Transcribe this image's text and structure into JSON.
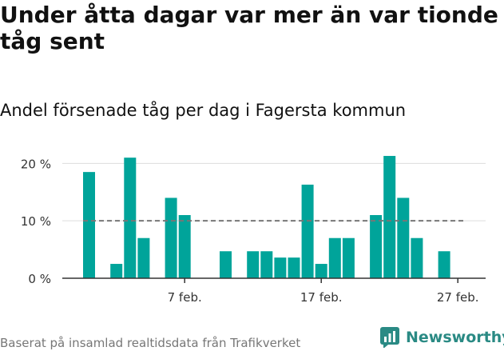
{
  "title": "Under åtta dagar var mer än var tionde tåg sent",
  "subtitle": "Andel försenade tåg per dag i Fagersta kommun",
  "footer": "Baserat på insamlad realtidsdata från Trafikverket",
  "brand": {
    "name": "Newsworthy",
    "icon": "newsworthy-logo-icon"
  },
  "colors": {
    "bar": "#00a49a",
    "reference": "#777777",
    "grid": "#dddddd",
    "axis": "#333333"
  },
  "chart_data": {
    "type": "bar",
    "x": [
      "2024-01-31",
      "2024-02-01",
      "2024-02-02",
      "2024-02-03",
      "2024-02-04",
      "2024-02-05",
      "2024-02-06",
      "2024-02-07",
      "2024-02-08",
      "2024-02-09",
      "2024-02-10",
      "2024-02-11",
      "2024-02-12",
      "2024-02-13",
      "2024-02-14",
      "2024-02-15",
      "2024-02-16",
      "2024-02-17",
      "2024-02-18",
      "2024-02-19",
      "2024-02-20",
      "2024-02-21",
      "2024-02-22",
      "2024-02-23",
      "2024-02-24",
      "2024-02-25",
      "2024-02-26",
      "2024-02-27",
      "2024-02-28",
      "2024-02-29"
    ],
    "values": [
      18.5,
      0,
      2.5,
      21,
      7,
      0,
      14,
      11,
      0,
      0,
      4.7,
      0,
      4.7,
      4.7,
      3.6,
      3.6,
      16.3,
      2.5,
      7,
      7,
      0,
      11,
      21.3,
      14,
      7,
      0,
      4.7,
      0,
      0,
      0
    ],
    "reference_value": 10,
    "yticks": [
      {
        "value": 0,
        "label": "0 %"
      },
      {
        "value": 10,
        "label": "10 %"
      },
      {
        "value": 20,
        "label": "20 %"
      }
    ],
    "xticks": [
      {
        "x": "2024-02-07",
        "label": "7 feb."
      },
      {
        "x": "2024-02-17",
        "label": "17 feb."
      },
      {
        "x": "2024-02-27",
        "label": "27 feb."
      }
    ],
    "ylim": [
      0,
      22
    ],
    "xlabel": "",
    "ylabel": "",
    "grid": true
  }
}
